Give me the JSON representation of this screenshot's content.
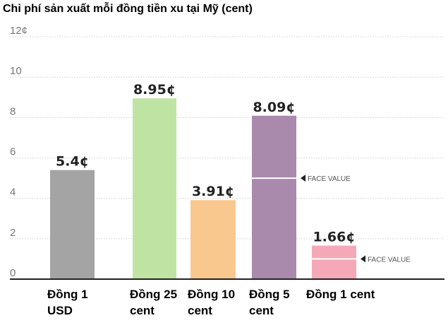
{
  "title": "Chi phí sản xuất mỗi đồng tiền xu tại Mỹ (cent)",
  "face_value_label": "FACE VALUE",
  "chart_data": {
    "type": "bar",
    "title": "Chi phí sản xuất mỗi đồng tiền xu tại Mỹ (cent)",
    "xlabel": "",
    "ylabel": "",
    "ylim": [
      0,
      12
    ],
    "yticks": [
      {
        "value": 0,
        "label": "0"
      },
      {
        "value": 2,
        "label": "2"
      },
      {
        "value": 4,
        "label": "4"
      },
      {
        "value": 6,
        "label": "6"
      },
      {
        "value": 8,
        "label": "8"
      },
      {
        "value": 10,
        "label": "10"
      },
      {
        "value": 12,
        "label": "12¢"
      }
    ],
    "grid": true,
    "categories": [
      {
        "lines": [
          "Đồng 1",
          "USD"
        ]
      },
      {
        "lines": [
          "Đồng 25",
          "cent"
        ]
      },
      {
        "lines": [
          "Đồng 10",
          "cent"
        ]
      },
      {
        "lines": [
          "Đồng 5",
          "cent"
        ]
      },
      {
        "lines": [
          "Đồng 1 cent"
        ]
      }
    ],
    "values": [
      5.4,
      8.95,
      3.91,
      8.09,
      1.66
    ],
    "data_labels": [
      "5.4¢",
      "8.95¢",
      "3.91¢",
      "8.09¢",
      "1.66¢"
    ],
    "colors": [
      "#a4a4a4",
      "#bfe3a3",
      "#f8c88e",
      "#a98aad",
      "#f5a9b8"
    ],
    "face_values": [
      null,
      null,
      null,
      5,
      1
    ]
  }
}
